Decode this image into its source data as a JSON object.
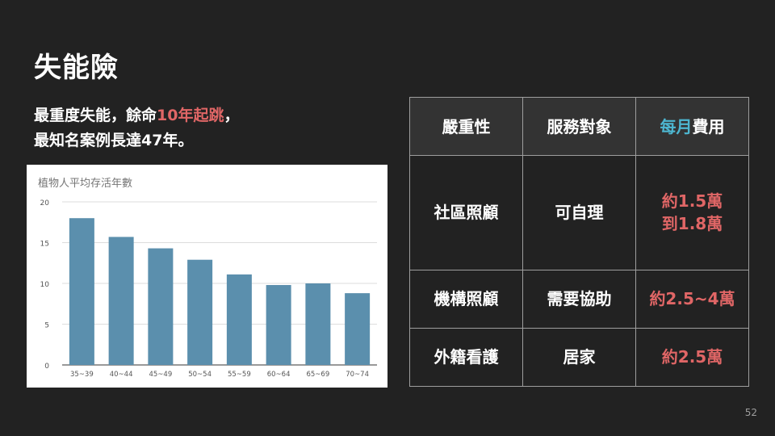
{
  "slide": {
    "title": "失能險",
    "subtitle_pre": "最重度失能，餘命",
    "subtitle_highlight": "10年起跳",
    "subtitle_post": "，",
    "subtitle_line2": "最知名案例長達47年。",
    "page_number": "52"
  },
  "table": {
    "headers": {
      "col1": "嚴重性",
      "col2": "服務對象",
      "col3_accent": "每月",
      "col3_rest": "費用"
    },
    "rows": [
      {
        "severity": "社區照顧",
        "target": "可自理",
        "cost_line1": "約1.5萬",
        "cost_line2": "到1.8萬"
      },
      {
        "severity": "機構照顧",
        "target": "需要協助",
        "cost_line1": "約2.5~4萬",
        "cost_line2": ""
      },
      {
        "severity": "外籍看護",
        "target": "居家",
        "cost_line1": "約2.5萬",
        "cost_line2": ""
      }
    ],
    "colors": {
      "cost": "#e06666",
      "accent": "#4db6d0"
    }
  },
  "chart_data": {
    "type": "bar",
    "title": "植物人平均存活年數",
    "categories": [
      "35~39",
      "40~44",
      "45~49",
      "50~54",
      "55~59",
      "60~64",
      "65~69",
      "70~74"
    ],
    "values": [
      18.0,
      15.7,
      14.3,
      12.9,
      11.1,
      9.8,
      10.0,
      8.8
    ],
    "ylim": [
      0,
      20
    ],
    "yticks": [
      0,
      5,
      10,
      15,
      20
    ],
    "grid": true,
    "xlabel": "",
    "ylabel": "",
    "bar_color": "#5b8fad"
  }
}
